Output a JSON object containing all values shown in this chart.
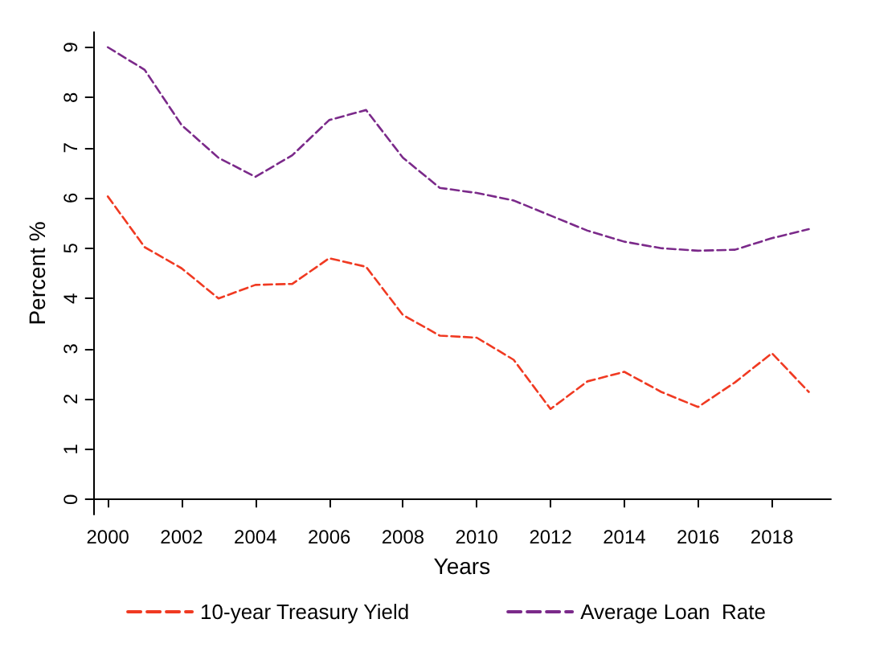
{
  "chart_data": {
    "type": "line",
    "xlabel": "Years",
    "ylabel": "Percent %",
    "x": [
      2000,
      2001,
      2002,
      2003,
      2004,
      2005,
      2006,
      2007,
      2008,
      2009,
      2010,
      2011,
      2012,
      2013,
      2014,
      2015,
      2016,
      2017,
      2018,
      2019
    ],
    "series": [
      {
        "name": "10-year Treasury Yield",
        "color": "#f03a22",
        "values": [
          6.03,
          5.02,
          4.6,
          4.0,
          4.27,
          4.29,
          4.8,
          4.63,
          3.67,
          3.26,
          3.22,
          2.78,
          1.8,
          2.35,
          2.54,
          2.14,
          1.84,
          2.33,
          2.91,
          2.14
        ]
      },
      {
        "name": "Average Loan  Rate",
        "color": "#7b2a8a",
        "values": [
          9.0,
          8.55,
          7.45,
          6.8,
          6.42,
          6.85,
          7.55,
          7.75,
          6.8,
          6.2,
          6.1,
          5.95,
          5.65,
          5.35,
          5.13,
          5.0,
          4.95,
          4.97,
          5.2,
          5.38
        ]
      }
    ],
    "xlim": [
      1999.6,
      2019.6
    ],
    "xticks": [
      2000,
      2002,
      2004,
      2006,
      2008,
      2010,
      2012,
      2014,
      2016,
      2018
    ],
    "ylim": [
      -0.3,
      9.3
    ],
    "yticks": [
      0,
      1,
      2,
      3,
      4,
      5,
      6,
      7,
      8,
      9
    ],
    "grid": false,
    "legend": "bottom",
    "line_style": "dashed",
    "marker": "none"
  }
}
